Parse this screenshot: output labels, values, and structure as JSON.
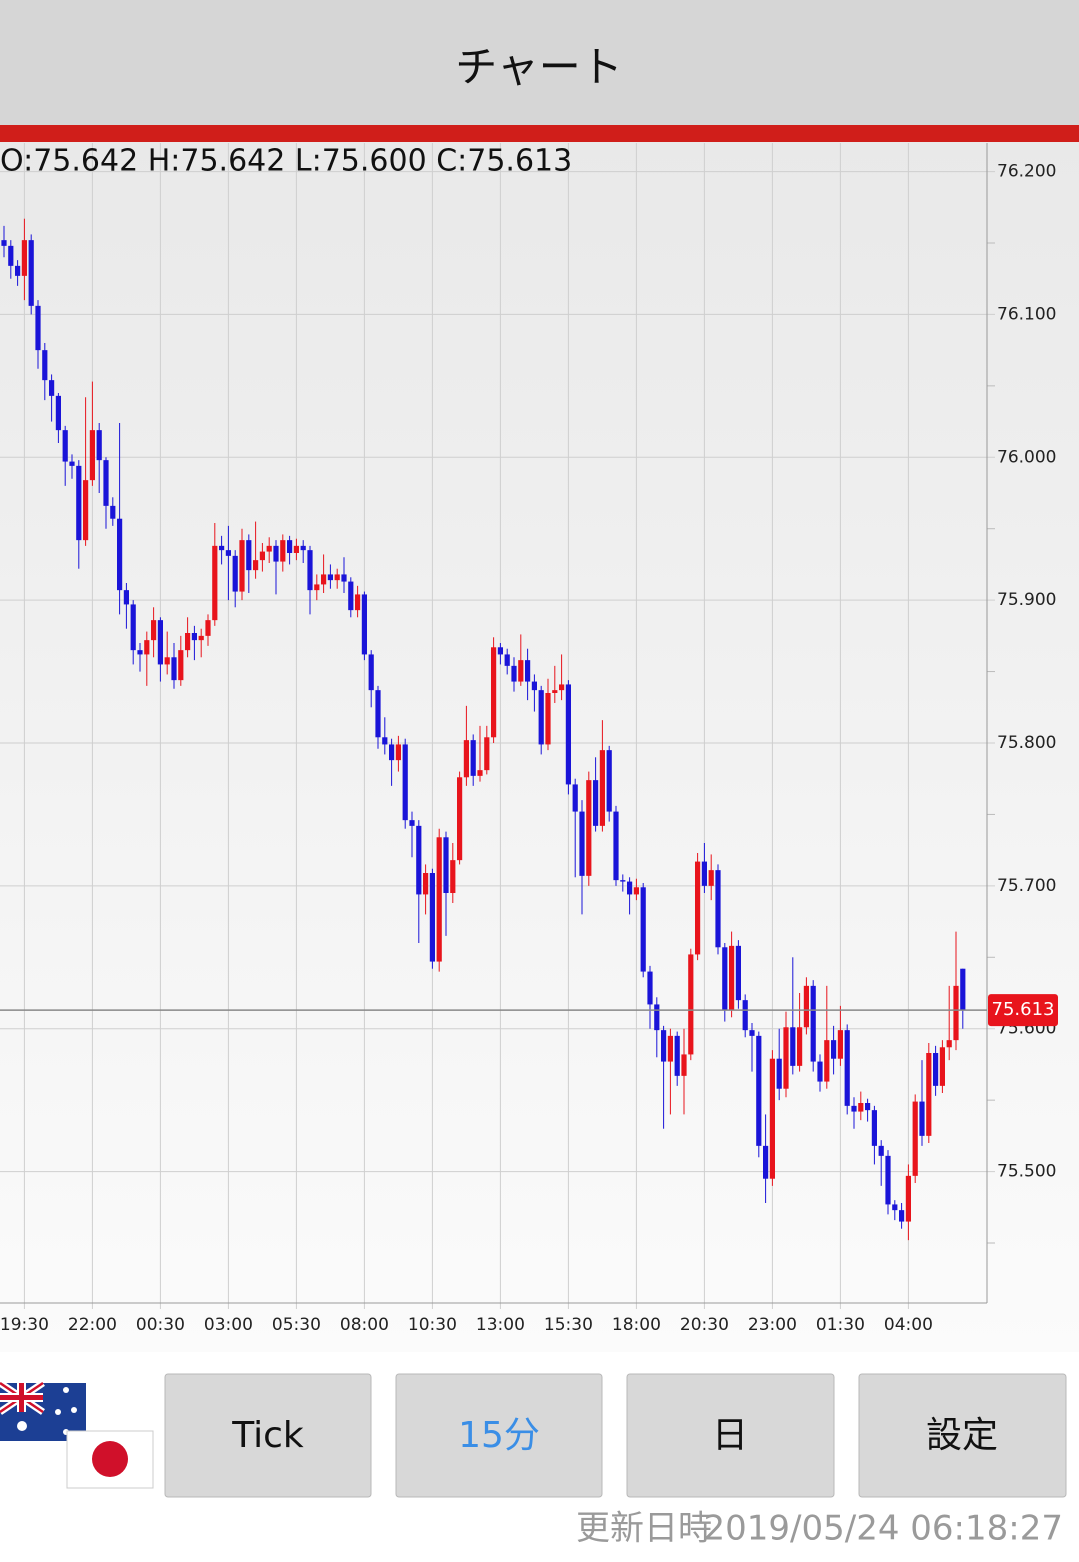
{
  "header": {
    "title": "チャート"
  },
  "chart_data": {
    "type": "candlestick",
    "ohlc_text": "O:75.642 H:75.642 L:75.600 C:75.613",
    "categories": [
      null,
      null,
      null,
      "19:30",
      null,
      null,
      null,
      null,
      null,
      null,
      null,
      null,
      null,
      "22:00",
      null,
      null,
      null,
      null,
      null,
      null,
      null,
      null,
      null,
      "00:30",
      null,
      null,
      null,
      null,
      null,
      null,
      null,
      null,
      null,
      "03:00",
      null,
      null,
      null,
      null,
      null,
      null,
      null,
      null,
      null,
      "05:30",
      null,
      null,
      null,
      null,
      null,
      null,
      null,
      null,
      null,
      "08:00",
      null,
      null,
      null,
      null,
      null,
      null,
      null,
      null,
      null,
      "10:30",
      null,
      null,
      null,
      null,
      null,
      null,
      null,
      null,
      null,
      "13:00",
      null,
      null,
      null,
      null,
      null,
      null,
      null,
      null,
      null,
      "15:30",
      null,
      null,
      null,
      null,
      null,
      null,
      null,
      null,
      null,
      "18:00",
      null,
      null,
      null,
      null,
      null,
      null,
      null,
      null,
      null,
      "20:30",
      null,
      null,
      null,
      null,
      null,
      null,
      null,
      null,
      null,
      "23:00",
      null,
      null,
      null,
      null,
      null,
      null,
      null,
      null,
      null,
      "01:30",
      null,
      null,
      null,
      null,
      null,
      null,
      null,
      null,
      null,
      "04:00",
      null,
      null,
      null,
      null,
      null,
      null,
      null,
      null
    ],
    "open": [
      76.152,
      76.148,
      76.134,
      76.127,
      76.152,
      76.106,
      76.075,
      76.054,
      76.043,
      76.019,
      75.997,
      75.994,
      75.942,
      75.984,
      76.019,
      75.998,
      75.966,
      75.957,
      75.907,
      75.897,
      75.865,
      75.862,
      75.872,
      75.886,
      75.855,
      75.86,
      75.844,
      75.865,
      75.877,
      75.872,
      75.875,
      75.886,
      75.938,
      75.935,
      75.931,
      75.906,
      75.942,
      75.921,
      75.928,
      75.934,
      75.938,
      75.927,
      75.942,
      75.933,
      75.938,
      75.935,
      75.907,
      75.911,
      75.918,
      75.914,
      75.918,
      75.913,
      75.893,
      75.904,
      75.862,
      75.837,
      75.804,
      75.799,
      75.788,
      75.799,
      75.746,
      75.742,
      75.694,
      75.709,
      75.647,
      75.734,
      75.695,
      75.718,
      75.776,
      75.802,
      75.777,
      75.781,
      75.804,
      75.867,
      75.862,
      75.854,
      75.843,
      75.858,
      75.843,
      75.837,
      75.799,
      75.835,
      75.837,
      75.841,
      75.771,
      75.752,
      75.707,
      75.774,
      75.742,
      75.795,
      75.752,
      75.704,
      75.703,
      75.694,
      75.699,
      75.64,
      75.617,
      75.599,
      75.577,
      75.595,
      75.567,
      75.582,
      75.652,
      75.717,
      75.7,
      75.711,
      75.657,
      75.613,
      75.658,
      75.62,
      75.599,
      75.595,
      75.518,
      75.495,
      75.579,
      75.558,
      75.601,
      75.574,
      75.601,
      75.63,
      75.577,
      75.563,
      75.592,
      75.579,
      75.599,
      75.546,
      75.542,
      75.548,
      75.543,
      75.518,
      75.511,
      75.477,
      75.473,
      75.465,
      75.497,
      75.549,
      75.525,
      75.583,
      75.56,
      75.587,
      75.592,
      75.642
    ],
    "high": [
      76.162,
      76.152,
      76.138,
      76.167,
      76.156,
      76.11,
      76.08,
      76.058,
      76.045,
      76.022,
      76.002,
      75.998,
      76.042,
      76.053,
      76.024,
      76.0,
      75.972,
      76.024,
      75.912,
      75.9,
      75.87,
      75.878,
      75.895,
      75.888,
      75.878,
      75.87,
      75.875,
      75.888,
      75.882,
      75.88,
      75.89,
      75.954,
      75.945,
      75.952,
      75.935,
      75.95,
      75.946,
      75.955,
      75.94,
      75.944,
      75.942,
      75.946,
      75.945,
      75.943,
      75.942,
      75.938,
      75.918,
      75.932,
      75.925,
      75.922,
      75.93,
      75.916,
      75.91,
      75.906,
      75.865,
      75.84,
      75.818,
      75.803,
      75.805,
      75.803,
      75.752,
      75.746,
      75.715,
      75.712,
      75.74,
      75.738,
      75.73,
      75.78,
      75.826,
      75.806,
      75.812,
      75.812,
      75.874,
      75.87,
      75.866,
      75.86,
      75.876,
      75.866,
      75.848,
      75.84,
      75.845,
      75.854,
      75.862,
      75.844,
      75.775,
      75.76,
      75.78,
      75.79,
      75.816,
      75.798,
      75.756,
      75.708,
      75.706,
      75.705,
      75.702,
      75.644,
      75.622,
      75.602,
      75.6,
      75.598,
      75.6,
      75.656,
      75.723,
      75.73,
      75.722,
      75.715,
      75.66,
      75.668,
      75.662,
      75.624,
      75.604,
      75.598,
      75.54,
      75.585,
      75.6,
      75.612,
      75.65,
      75.625,
      75.636,
      75.634,
      75.582,
      75.63,
      75.602,
      75.616,
      75.603,
      75.552,
      75.556,
      75.551,
      75.546,
      75.522,
      75.515,
      75.48,
      75.478,
      75.505,
      75.554,
      75.578,
      75.59,
      75.588,
      75.592,
      75.63,
      75.668,
      75.642
    ],
    "low": [
      76.14,
      76.125,
      76.12,
      76.11,
      76.1,
      76.062,
      76.04,
      76.025,
      76.01,
      75.98,
      75.985,
      75.922,
      75.938,
      75.98,
      75.975,
      75.95,
      75.952,
      75.89,
      75.88,
      75.855,
      75.85,
      75.84,
      75.86,
      75.843,
      75.848,
      75.838,
      75.84,
      75.86,
      75.858,
      75.86,
      75.868,
      75.882,
      75.925,
      75.9,
      75.895,
      75.9,
      75.905,
      75.915,
      75.92,
      75.926,
      75.904,
      75.92,
      75.925,
      75.928,
      75.926,
      75.89,
      75.9,
      75.905,
      75.908,
      75.908,
      75.905,
      75.888,
      75.888,
      75.858,
      75.825,
      75.796,
      75.792,
      75.77,
      75.78,
      75.74,
      75.72,
      75.66,
      75.68,
      75.642,
      75.64,
      75.665,
      75.688,
      75.715,
      75.77,
      75.77,
      75.773,
      75.778,
      75.8,
      75.855,
      75.848,
      75.836,
      75.84,
      75.83,
      75.822,
      75.792,
      75.795,
      75.828,
      75.83,
      75.764,
      75.706,
      75.68,
      75.7,
      75.738,
      75.738,
      75.745,
      75.7,
      75.696,
      75.68,
      75.69,
      75.636,
      75.6,
      75.58,
      75.53,
      75.54,
      75.56,
      75.54,
      75.578,
      75.648,
      75.695,
      75.69,
      75.652,
      75.605,
      75.608,
      75.614,
      75.594,
      75.57,
      75.51,
      75.478,
      75.49,
      75.55,
      75.552,
      75.568,
      75.57,
      75.596,
      75.57,
      75.556,
      75.558,
      75.568,
      75.574,
      75.54,
      75.53,
      75.536,
      75.535,
      75.505,
      75.49,
      75.47,
      75.466,
      75.46,
      75.452,
      75.492,
      75.518,
      75.52,
      75.553,
      75.555,
      75.578,
      75.585,
      75.6
    ],
    "close": [
      76.148,
      76.134,
      76.127,
      76.152,
      76.106,
      76.075,
      76.054,
      76.043,
      76.019,
      75.997,
      75.994,
      75.942,
      75.984,
      76.019,
      75.998,
      75.966,
      75.957,
      75.907,
      75.897,
      75.865,
      75.862,
      75.872,
      75.886,
      75.855,
      75.86,
      75.844,
      75.865,
      75.877,
      75.872,
      75.875,
      75.886,
      75.938,
      75.935,
      75.931,
      75.906,
      75.942,
      75.921,
      75.928,
      75.934,
      75.938,
      75.927,
      75.942,
      75.933,
      75.938,
      75.935,
      75.907,
      75.911,
      75.918,
      75.914,
      75.918,
      75.913,
      75.893,
      75.904,
      75.862,
      75.837,
      75.804,
      75.799,
      75.788,
      75.799,
      75.746,
      75.742,
      75.694,
      75.709,
      75.647,
      75.734,
      75.695,
      75.718,
      75.776,
      75.802,
      75.777,
      75.781,
      75.804,
      75.867,
      75.862,
      75.854,
      75.843,
      75.858,
      75.843,
      75.837,
      75.799,
      75.835,
      75.837,
      75.841,
      75.771,
      75.752,
      75.707,
      75.774,
      75.742,
      75.795,
      75.752,
      75.704,
      75.703,
      75.694,
      75.699,
      75.64,
      75.617,
      75.599,
      75.577,
      75.595,
      75.567,
      75.582,
      75.652,
      75.717,
      75.7,
      75.711,
      75.657,
      75.613,
      75.658,
      75.62,
      75.599,
      75.595,
      75.518,
      75.495,
      75.579,
      75.558,
      75.601,
      75.574,
      75.601,
      75.63,
      75.577,
      75.563,
      75.592,
      75.579,
      75.599,
      75.546,
      75.542,
      75.548,
      75.543,
      75.518,
      75.511,
      75.477,
      75.473,
      75.465,
      75.497,
      75.549,
      75.525,
      75.583,
      75.56,
      75.587,
      75.592,
      75.63,
      75.613
    ],
    "up_color": "#e8141c",
    "down_color": "#1a14d8",
    "ylim": [
      75.408,
      76.22
    ],
    "yticks": [
      {
        "value": 76.2,
        "label": "76.200"
      },
      {
        "value": 76.1,
        "label": "76.100"
      },
      {
        "value": 76.0,
        "label": "76.000"
      },
      {
        "value": 75.9,
        "label": "75.900"
      },
      {
        "value": 75.8,
        "label": "75.800"
      },
      {
        "value": 75.7,
        "label": "75.700"
      },
      {
        "value": 75.6,
        "label": "75.600"
      },
      {
        "value": 75.5,
        "label": "75.500"
      }
    ],
    "yminorticks": [
      76.15,
      76.05,
      75.95,
      75.85,
      75.75,
      75.65,
      75.55,
      75.45
    ],
    "last_price": 75.613,
    "grid": true
  },
  "buttons": [
    {
      "label": "Tick"
    },
    {
      "label": "15分"
    },
    {
      "label": "日"
    },
    {
      "label": "設定"
    }
  ],
  "footer": {
    "label": "更新日時",
    "timestamp": "2019/05/24 06:18:27"
  }
}
